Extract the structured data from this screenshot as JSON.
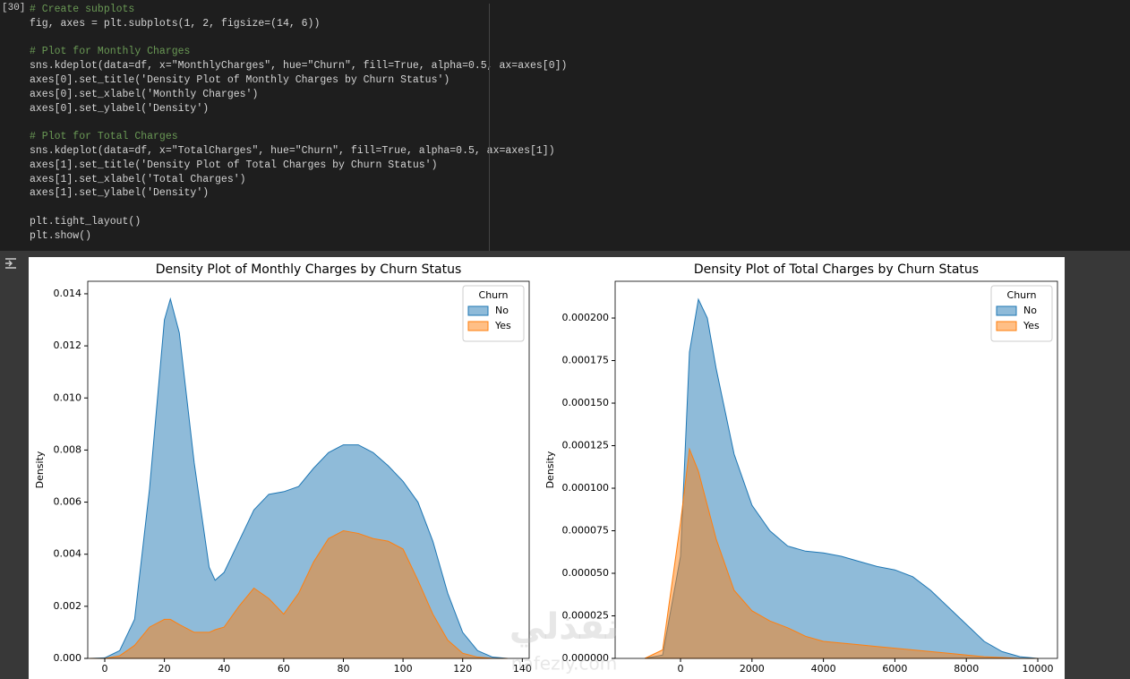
{
  "cell": {
    "execution_count": "[30]",
    "code_blocks": [
      [
        "# Create subplots",
        "fig, axes = plt.subplots(1, 2, figsize=(14, 6))"
      ],
      [
        "# Plot for Monthly Charges",
        "sns.kdeplot(data=df, x=\"MonthlyCharges\", hue=\"Churn\", fill=True, alpha=0.5, ax=axes[0])",
        "axes[0].set_title('Density Plot of Monthly Charges by Churn Status')",
        "axes[0].set_xlabel('Monthly Charges')",
        "axes[0].set_ylabel('Density')"
      ],
      [
        "# Plot for Total Charges",
        "sns.kdeplot(data=df, x=\"TotalCharges\", hue=\"Churn\", fill=True, alpha=0.5, ax=axes[1])",
        "axes[1].set_title('Density Plot of Total Charges by Churn Status')",
        "axes[1].set_xlabel('Total Charges')",
        "axes[1].set_ylabel('Density')"
      ],
      [
        "plt.tight_layout()",
        "plt.show()"
      ]
    ]
  },
  "watermark": {
    "arabic": "نفذلي",
    "latin": "nafezly.com"
  },
  "chart_data": [
    {
      "type": "area",
      "title": "Density Plot of Monthly Charges by Churn Status",
      "y_label": "Density",
      "legend_title": "Churn",
      "legend": "upper right",
      "alpha": 0.5,
      "x": [
        -5,
        0,
        5,
        10,
        15,
        20,
        22,
        25,
        30,
        35,
        37,
        40,
        45,
        50,
        55,
        60,
        65,
        70,
        75,
        80,
        85,
        90,
        95,
        100,
        105,
        110,
        115,
        120,
        125,
        130,
        135
      ],
      "series": [
        {
          "name": "No",
          "color": "#1f77b4",
          "values": [
            0,
            2e-05,
            0.0003,
            0.0015,
            0.0065,
            0.013,
            0.0138,
            0.0125,
            0.0075,
            0.0035,
            0.003,
            0.0033,
            0.0045,
            0.0057,
            0.0063,
            0.0064,
            0.0066,
            0.0073,
            0.0079,
            0.0082,
            0.0082,
            0.0079,
            0.0074,
            0.0068,
            0.006,
            0.0045,
            0.0025,
            0.001,
            0.0003,
            5e-05,
            0
          ]
        },
        {
          "name": "Yes",
          "color": "#ff7f0e",
          "values": [
            0,
            0,
            0.0001,
            0.0005,
            0.0012,
            0.0015,
            0.0015,
            0.0013,
            0.001,
            0.001,
            0.0011,
            0.0012,
            0.002,
            0.0027,
            0.0023,
            0.0017,
            0.0025,
            0.0037,
            0.0046,
            0.0049,
            0.0048,
            0.0046,
            0.0045,
            0.0042,
            0.003,
            0.0017,
            0.0007,
            0.0002,
            5e-05,
            0,
            0
          ]
        }
      ],
      "xlim": [
        -5.7,
        142.3
      ],
      "ylim": [
        0,
        0.01448
      ],
      "xticks": [
        0,
        20,
        40,
        60,
        80,
        100,
        120,
        140
      ],
      "yticks": [
        {
          "value": 0,
          "label": "0.000"
        },
        {
          "value": 0.002,
          "label": "0.002"
        },
        {
          "value": 0.004,
          "label": "0.004"
        },
        {
          "value": 0.006,
          "label": "0.006"
        },
        {
          "value": 0.008,
          "label": "0.008"
        },
        {
          "value": 0.01,
          "label": "0.010"
        },
        {
          "value": 0.012,
          "label": "0.012"
        },
        {
          "value": 0.014,
          "label": "0.014"
        }
      ]
    },
    {
      "type": "area",
      "title": "Density Plot of Total Charges by Churn Status",
      "y_label": "Density",
      "legend_title": "Churn",
      "legend": "upper right",
      "alpha": 0.5,
      "x": [
        -1000,
        -500,
        0,
        250,
        500,
        750,
        1000,
        1500,
        2000,
        2500,
        3000,
        3500,
        4000,
        4500,
        5000,
        5500,
        6000,
        6500,
        7000,
        7500,
        8000,
        8500,
        9000,
        9500,
        10000
      ],
      "series": [
        {
          "name": "No",
          "color": "#1f77b4",
          "values": [
            0,
            2e-06,
            6e-05,
            0.00018,
            0.000211,
            0.0002,
            0.00017,
            0.00012,
            9e-05,
            7.5e-05,
            6.6e-05,
            6.3e-05,
            6.2e-05,
            6e-05,
            5.7e-05,
            5.4e-05,
            5.2e-05,
            4.8e-05,
            4e-05,
            3e-05,
            2e-05,
            1e-05,
            4e-06,
            1e-06,
            0
          ]
        },
        {
          "name": "Yes",
          "color": "#ff7f0e",
          "values": [
            0,
            5e-06,
            8e-05,
            0.000123,
            0.00011,
            9e-05,
            7e-05,
            4e-05,
            2.8e-05,
            2.2e-05,
            1.8e-05,
            1.3e-05,
            1e-05,
            9e-06,
            8e-06,
            7e-06,
            6e-06,
            5e-06,
            4e-06,
            3e-06,
            2e-06,
            1e-06,
            5e-07,
            0,
            0
          ]
        }
      ],
      "xlim": [
        -1830,
        10551
      ],
      "ylim": [
        0,
        0.0002216
      ],
      "xticks": [
        0,
        2000,
        4000,
        6000,
        8000,
        10000
      ],
      "yticks": [
        {
          "value": 0,
          "label": "0.000000"
        },
        {
          "value": 2.5e-05,
          "label": "0.000025"
        },
        {
          "value": 5e-05,
          "label": "0.000050"
        },
        {
          "value": 7.5e-05,
          "label": "0.000075"
        },
        {
          "value": 0.0001,
          "label": "0.000100"
        },
        {
          "value": 0.000125,
          "label": "0.000125"
        },
        {
          "value": 0.00015,
          "label": "0.000150"
        },
        {
          "value": 0.000175,
          "label": "0.000175"
        },
        {
          "value": 0.0002,
          "label": "0.000200"
        }
      ]
    }
  ]
}
